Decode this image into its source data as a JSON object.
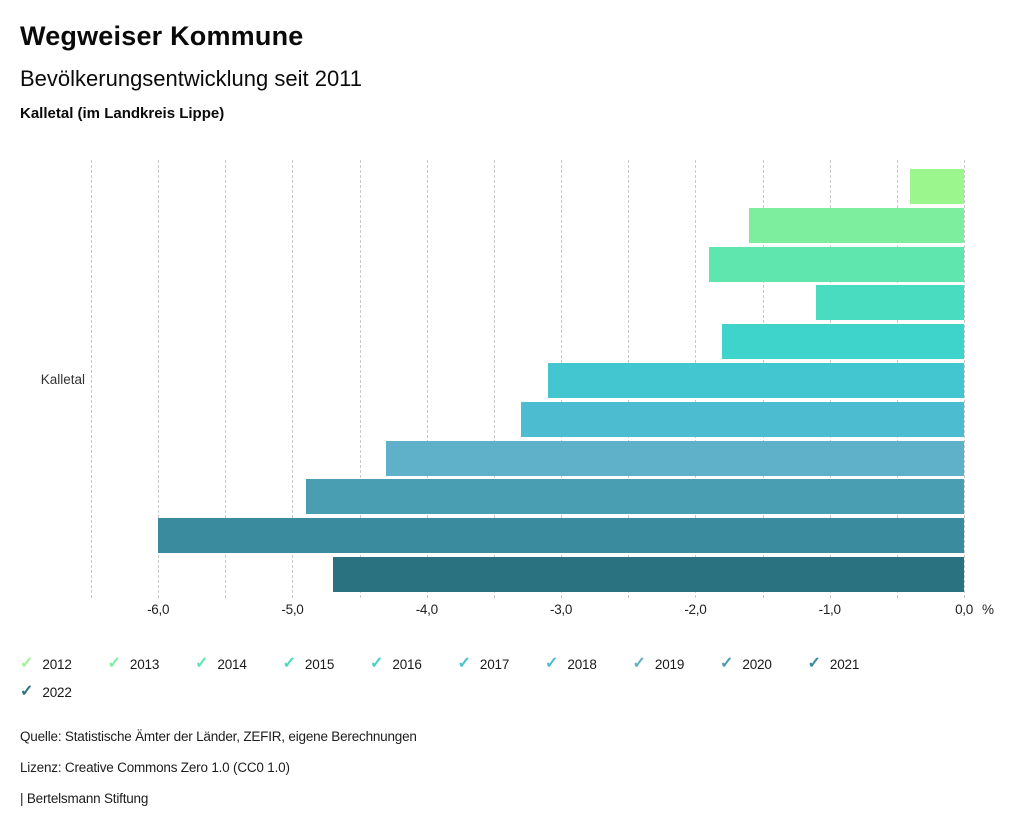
{
  "header": {
    "title": "Wegweiser Kommune",
    "subtitle": "Bevölkerungsentwicklung seit 2011",
    "region": "Kalletal (im Landkreis Lippe)"
  },
  "chart_data": {
    "type": "bar",
    "orientation": "horizontal",
    "title": "Bevölkerungsentwicklung seit 2011",
    "category": "Kalletal",
    "unit_label": "%",
    "xlim": [
      -6.5,
      0.0
    ],
    "grid_step": 0.5,
    "grid_style": "dashed",
    "legend_position": "bottom",
    "x_ticks": [
      {
        "value": -6,
        "label": "-6,0"
      },
      {
        "value": -5,
        "label": "-5,0"
      },
      {
        "value": -4,
        "label": "-4,0"
      },
      {
        "value": -3,
        "label": "-3,0"
      },
      {
        "value": -2,
        "label": "-2,0"
      },
      {
        "value": -1,
        "label": "-1,0"
      },
      {
        "value": 0,
        "label": "0,0"
      }
    ],
    "series": [
      {
        "year": "2012",
        "value": -0.4,
        "color": "#9bf68e"
      },
      {
        "year": "2013",
        "value": -1.6,
        "color": "#7cee9d"
      },
      {
        "year": "2014",
        "value": -1.9,
        "color": "#5ee6ae"
      },
      {
        "year": "2015",
        "value": -1.1,
        "color": "#49dcc0"
      },
      {
        "year": "2016",
        "value": -1.8,
        "color": "#3ed3cb"
      },
      {
        "year": "2017",
        "value": -3.1,
        "color": "#43c6cf"
      },
      {
        "year": "2018",
        "value": -3.3,
        "color": "#4cbcd1"
      },
      {
        "year": "2019",
        "value": -4.3,
        "color": "#5fb1c9"
      },
      {
        "year": "2020",
        "value": -4.9,
        "color": "#4a9eb2"
      },
      {
        "year": "2021",
        "value": -6.0,
        "color": "#3a8b9d"
      },
      {
        "year": "2022",
        "value": -4.7,
        "color": "#2b7280"
      }
    ],
    "legend": {
      "check_icon": "✓",
      "items_per_row": 10
    }
  },
  "footer": {
    "source": "Quelle: Statistische Ämter der Länder, ZEFIR, eigene Berechnungen",
    "license": "Lizenz: Creative Commons Zero 1.0 (CC0 1.0)",
    "attribution": "| Bertelsmann Stiftung"
  }
}
